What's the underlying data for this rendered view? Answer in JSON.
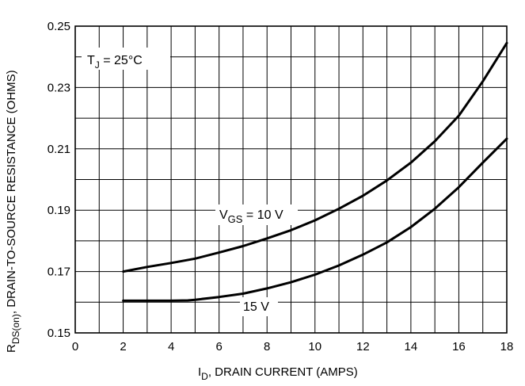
{
  "chart_data": {
    "type": "line",
    "title": "",
    "xlabel": {
      "main": "I",
      "sub": "D",
      "rest": ", DRAIN CURRENT (AMPS)"
    },
    "ylabel": {
      "main": "R",
      "sub": "DS(on)",
      "rest": ", DRAIN-TO-SOURCE RESISTANCE (OHMS)"
    },
    "xlim": [
      0,
      18
    ],
    "ylim": [
      0.15,
      0.25
    ],
    "x_ticks": [
      "0",
      "2",
      "4",
      "6",
      "8",
      "10",
      "12",
      "14",
      "16",
      "18"
    ],
    "y_ticks": [
      "0.15",
      "0.17",
      "0.19",
      "0.21",
      "0.23",
      "0.25"
    ],
    "grid": true,
    "annotations": {
      "temp": {
        "main": "T",
        "sub": "J",
        "rest": " = 25°C"
      },
      "vgs10": {
        "main": "V",
        "sub": "GS",
        "rest": " = 10 V"
      },
      "vgs15": "15 V"
    },
    "series": [
      {
        "name": "10 V",
        "x": [
          2,
          3,
          4,
          5,
          6,
          7,
          8,
          9,
          10,
          11,
          12,
          13,
          14,
          15,
          16,
          17,
          18
        ],
        "y": [
          0.17,
          0.1715,
          0.1728,
          0.1742,
          0.1762,
          0.1783,
          0.1808,
          0.1835,
          0.1867,
          0.1905,
          0.1947,
          0.1997,
          0.2055,
          0.2125,
          0.2208,
          0.232,
          0.2445
        ]
      },
      {
        "name": "15 V",
        "x": [
          2,
          3,
          4,
          4.7,
          5,
          6,
          7,
          8,
          9,
          10,
          11,
          12,
          13,
          14,
          15,
          16,
          17,
          18
        ],
        "y": [
          0.1605,
          0.1605,
          0.1605,
          0.1606,
          0.1608,
          0.1617,
          0.1628,
          0.1645,
          0.1665,
          0.169,
          0.172,
          0.1755,
          0.1795,
          0.1845,
          0.1905,
          0.1975,
          0.2055,
          0.2133
        ]
      }
    ]
  }
}
